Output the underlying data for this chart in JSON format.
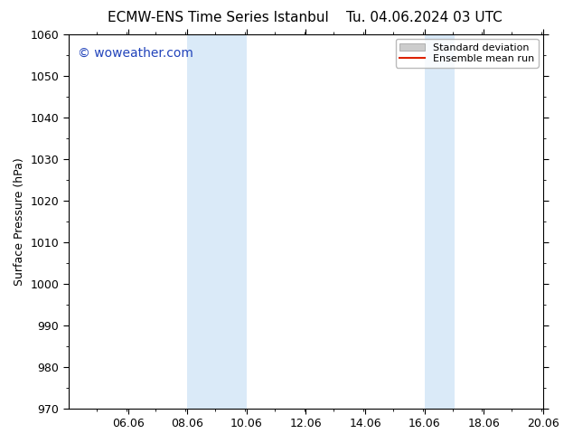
{
  "title_left": "ECMW-ENS Time Series Istanbul",
  "title_right": "Tu. 04.06.2024 03 UTC",
  "ylabel": "Surface Pressure (hPa)",
  "xlim": [
    4.06,
    20.06
  ],
  "ylim": [
    970,
    1060
  ],
  "yticks": [
    970,
    980,
    990,
    1000,
    1010,
    1020,
    1030,
    1040,
    1050,
    1060
  ],
  "xtick_positions": [
    6.06,
    8.06,
    10.06,
    12.06,
    14.06,
    16.06,
    18.06,
    20.06
  ],
  "xtick_labels": [
    "06.06",
    "08.06",
    "10.06",
    "12.06",
    "14.06",
    "16.06",
    "18.06",
    "20.06"
  ],
  "shaded_regions": [
    {
      "xmin": 8.06,
      "xmax": 10.06
    },
    {
      "xmin": 16.06,
      "xmax": 17.06
    }
  ],
  "shade_color": "#daeaf8",
  "bg_color": "#ffffff",
  "watermark_text": "© woweather.com",
  "watermark_color": "#2244bb",
  "legend_std_dev_color": "#cccccc",
  "legend_mean_color": "#dd2200",
  "title_fontsize": 11,
  "axis_fontsize": 9,
  "tick_fontsize": 9,
  "watermark_fontsize": 10
}
